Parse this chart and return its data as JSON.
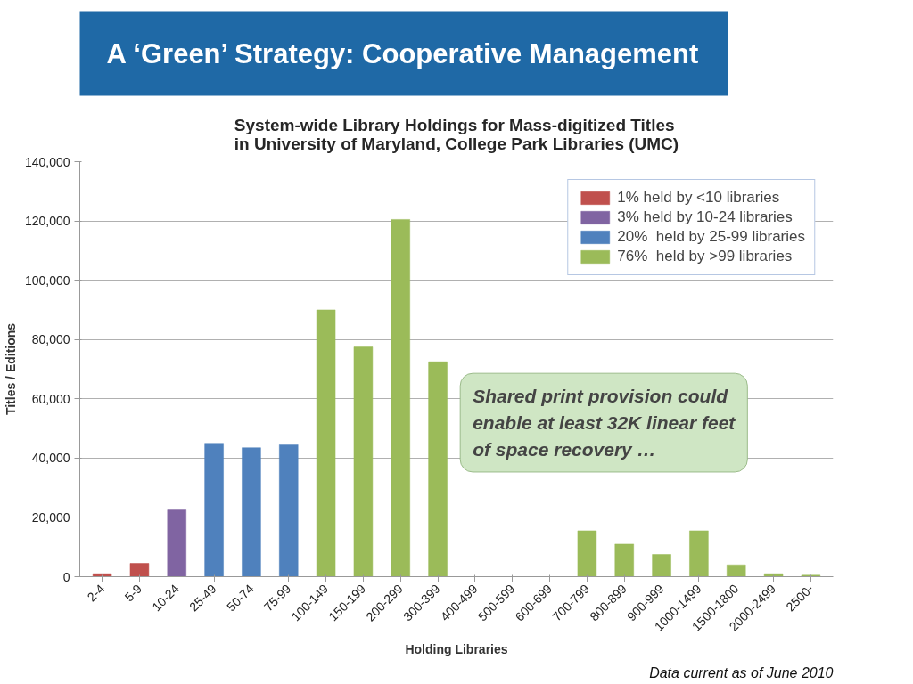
{
  "chart_data": {
    "type": "bar",
    "title": "A ‘Green’ Strategy: Cooperative Management",
    "subtitle": "System-wide Library Holdings for Mass-digitized Titles in University of Maryland, College Park Libraries (UMC)",
    "xlabel": "Holding Libraries",
    "ylabel": "Titles / Editions",
    "categories": [
      "2-4",
      "5-9",
      "10-24",
      "25-49",
      "50-74",
      "75-99",
      "100-149",
      "150-199",
      "200-299",
      "300-399",
      "400-499",
      "500-599",
      "600-699",
      "700-799",
      "800-899",
      "900-999",
      "1000-1499",
      "1500-1800",
      "2000-2499",
      "2500-"
    ],
    "series": [
      {
        "name": "1% held by <10 libraries",
        "color": "#c0504d",
        "values": [
          1000,
          4500,
          null,
          null,
          null,
          null,
          null,
          null,
          null,
          null,
          null,
          null,
          null,
          null,
          null,
          null,
          null,
          null,
          null,
          null
        ]
      },
      {
        "name": "3% held by 10-24 libraries",
        "color": "#8064a2",
        "values": [
          null,
          null,
          22500,
          null,
          null,
          null,
          null,
          null,
          null,
          null,
          null,
          null,
          null,
          null,
          null,
          null,
          null,
          null,
          null,
          null
        ]
      },
      {
        "name": "20%  held by 25-99 libraries",
        "color": "#4f81bd",
        "values": [
          null,
          null,
          null,
          45000,
          43500,
          44500,
          null,
          null,
          null,
          null,
          null,
          null,
          null,
          null,
          null,
          null,
          null,
          null,
          null,
          null
        ]
      },
      {
        "name": "76%  held by >99 libraries",
        "color": "#9bbb59",
        "values": [
          null,
          null,
          null,
          null,
          null,
          null,
          90000,
          77500,
          120500,
          72500,
          null,
          null,
          null,
          15500,
          11000,
          7500,
          15500,
          4000,
          1000,
          500
        ]
      }
    ],
    "stacked": true,
    "ylim": [
      0,
      140000
    ],
    "yticks": [
      0,
      {
        "value": 20000,
        "label": "20,000"
      },
      {
        "value": 40000,
        "label": "40,000"
      },
      {
        "value": 60000,
        "label": "60,000"
      },
      {
        "value": 80000,
        "label": "80,000"
      },
      {
        "value": 100000,
        "label": "100,000"
      },
      {
        "value": 120000,
        "label": "120,000"
      },
      {
        "value": 140000,
        "label": "140,000"
      }
    ],
    "grid": "y",
    "legend": "top right",
    "annotations": [
      "Shared print provision could enable at least 32K linear feet of space recovery …",
      "Data current as of June 2010"
    ]
  }
}
